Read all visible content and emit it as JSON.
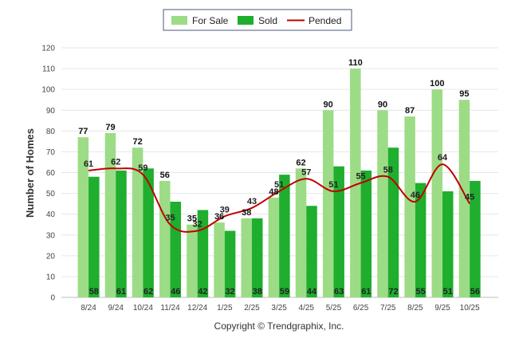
{
  "chart_data": {
    "type": "bar",
    "title": "",
    "xlabel": "",
    "ylabel": "Number of Homes",
    "ylim": [
      0,
      120
    ],
    "yticks": [
      0,
      10,
      20,
      30,
      40,
      50,
      60,
      70,
      80,
      90,
      100,
      110,
      120
    ],
    "categories": [
      "8/24",
      "9/24",
      "10/24",
      "11/24",
      "12/24",
      "1/25",
      "2/25",
      "3/25",
      "4/25",
      "5/25",
      "6/25",
      "7/25",
      "8/25",
      "9/25",
      "10/25"
    ],
    "series": [
      {
        "name": "For Sale",
        "type": "bar",
        "color": "#9ddc86",
        "values": [
          77,
          79,
          72,
          56,
          35,
          36,
          38,
          48,
          62,
          90,
          110,
          90,
          87,
          100,
          95
        ]
      },
      {
        "name": "Sold",
        "type": "bar",
        "color": "#1fae2e",
        "values": [
          58,
          61,
          62,
          46,
          42,
          32,
          38,
          59,
          44,
          63,
          61,
          72,
          55,
          51,
          56
        ]
      },
      {
        "name": "Pended",
        "type": "line",
        "color": "#c00000",
        "values": [
          61,
          62,
          59,
          35,
          32,
          39,
          43,
          51,
          57,
          51,
          55,
          58,
          46,
          64,
          45
        ]
      }
    ],
    "legend_position": "top-center",
    "grid": true
  },
  "footer": {
    "copyright": "Copyright © Trendgraphix, Inc."
  }
}
